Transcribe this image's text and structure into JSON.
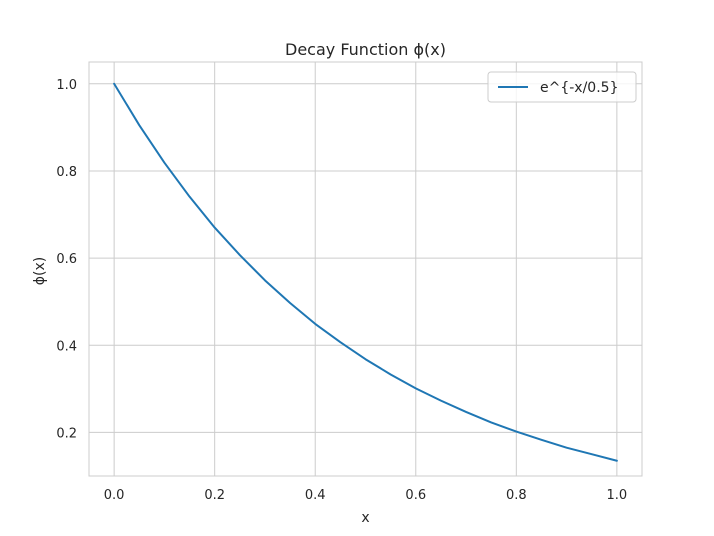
{
  "chart_data": {
    "type": "line",
    "title": "Decay Function ϕ(x)",
    "xlabel": "x",
    "ylabel": "ϕ(x)",
    "xlim": [
      -0.05,
      1.05
    ],
    "ylim": [
      0.1,
      1.05
    ],
    "xticks": [
      0.0,
      0.2,
      0.4,
      0.6,
      0.8,
      1.0
    ],
    "xtick_labels": [
      "0.0",
      "0.2",
      "0.4",
      "0.6",
      "0.8",
      "1.0"
    ],
    "yticks": [
      0.2,
      0.4,
      0.6,
      0.8,
      1.0
    ],
    "ytick_labels": [
      "0.2",
      "0.4",
      "0.6",
      "0.8",
      "1.0"
    ],
    "grid": true,
    "legend": "top-right",
    "series": [
      {
        "name": "e^{-x/0.5}",
        "color": "#1f77b4",
        "x": [
          0.0,
          0.05,
          0.1,
          0.15,
          0.2,
          0.25,
          0.3,
          0.35,
          0.4,
          0.45,
          0.5,
          0.55,
          0.6,
          0.65,
          0.7,
          0.75,
          0.8,
          0.85,
          0.9,
          0.95,
          1.0
        ],
        "y": [
          1.0,
          0.905,
          0.819,
          0.741,
          0.67,
          0.607,
          0.549,
          0.497,
          0.449,
          0.407,
          0.368,
          0.333,
          0.301,
          0.273,
          0.247,
          0.223,
          0.202,
          0.183,
          0.165,
          0.15,
          0.135
        ]
      }
    ]
  }
}
